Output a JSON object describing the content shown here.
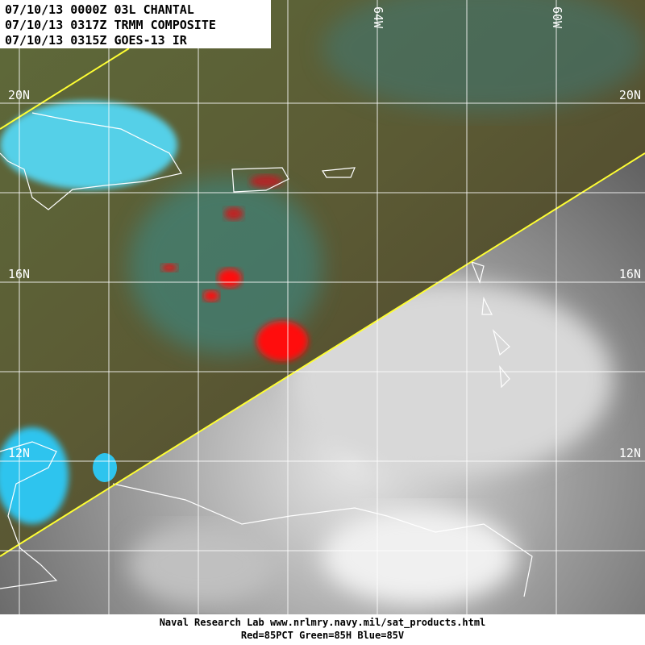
{
  "header": {
    "lines": [
      "07/10/13 0000Z 03L CHANTAL",
      "07/10/13 0317Z TRMM COMPOSITE",
      "07/10/13 0315Z GOES-13 IR"
    ]
  },
  "map": {
    "lat_labels_left": [
      "20N",
      "16N",
      "12N"
    ],
    "lat_labels_right": [
      "20N",
      "16N",
      "12N"
    ],
    "lon_labels": [
      "64W",
      "60W"
    ]
  },
  "footer": {
    "lines": [
      "Naval Research Lab  www.nrlmry.navy.mil/sat_products.html",
      "Red=85PCT  Green=85H  Blue=85V"
    ]
  }
}
